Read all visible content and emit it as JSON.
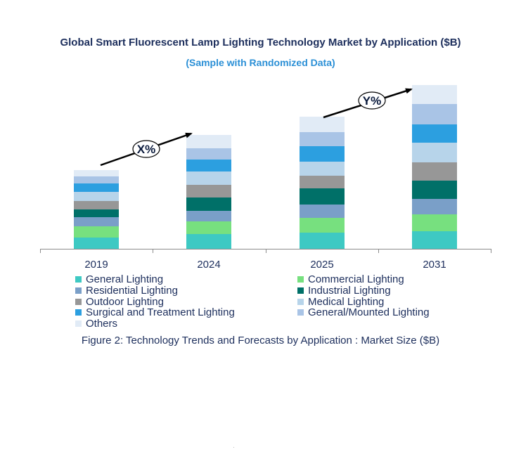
{
  "chart_data": {
    "type": "bar",
    "stacked": true,
    "title": "Global Smart Fluorescent Lamp Lighting Technology Market by Application ($B)",
    "subtitle": "(Sample with Randomized Data)",
    "caption": "Figure 2: Technology  Trends  and Forecasts by Application : Market Size ($B)",
    "categories": [
      "2019",
      "2024",
      "2025",
      "2031"
    ],
    "ylim": [
      0,
      233
    ],
    "series": [
      {
        "name": "General Lighting",
        "color": "#3ec9c3",
        "values": [
          16,
          21,
          23,
          25
        ]
      },
      {
        "name": "Commercial Lighting",
        "color": "#77e07f",
        "values": [
          16,
          18,
          21,
          24
        ]
      },
      {
        "name": "Residential Lighting",
        "color": "#7a9fc8",
        "values": [
          13,
          15,
          19,
          22
        ]
      },
      {
        "name": "Industrial Lighting",
        "color": "#007068",
        "values": [
          11,
          19,
          23,
          26
        ]
      },
      {
        "name": "Outdoor Lighting",
        "color": "#979797",
        "values": [
          12,
          18,
          18,
          26
        ]
      },
      {
        "name": "Medical Lighting",
        "color": "#b7d4ea",
        "values": [
          13,
          19,
          20,
          28
        ]
      },
      {
        "name": "Surgical and Treatment Lighting",
        "color": "#2c9fe0",
        "values": [
          12,
          17,
          22,
          26
        ]
      },
      {
        "name": "General/Mounted Lighting",
        "color": "#a9c4e6",
        "values": [
          10,
          16,
          20,
          29
        ]
      },
      {
        "name": "Others",
        "color": "#e1ebf6",
        "values": [
          9,
          19,
          22,
          27
        ]
      }
    ],
    "annotations": [
      {
        "label": "X%",
        "from": "2019",
        "to": "2024"
      },
      {
        "label": "Y%",
        "from": "2025",
        "to": "2031"
      }
    ]
  }
}
